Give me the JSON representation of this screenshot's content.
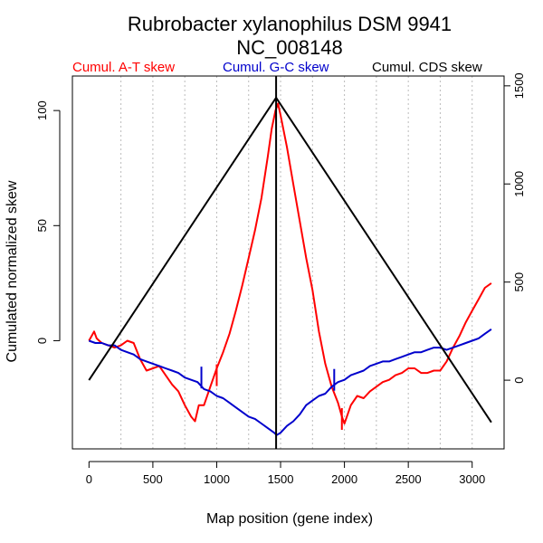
{
  "chart_data": {
    "type": "line",
    "title": "Rubrobacter xylanophilus DSM 9941",
    "subtitle": "NC_008148",
    "xlabel": "Map position (gene index)",
    "ylabel": "Cumulated normalized skew",
    "xlim": [
      -130,
      3250
    ],
    "ylim": [
      -47,
      115
    ],
    "y2lim": [
      -350,
      1550
    ],
    "x_ticks": [
      0,
      500,
      1000,
      1500,
      2000,
      2500,
      3000
    ],
    "x_tick_labels": [
      "0",
      "500",
      "1000",
      "1500",
      "2000",
      "2500",
      "3000"
    ],
    "y_ticks": [
      0,
      50,
      100
    ],
    "y_tick_labels": [
      "0",
      "50",
      "100"
    ],
    "y2_ticks": [
      0,
      500,
      1000,
      1500
    ],
    "y2_tick_labels": [
      "0",
      "500",
      "1000",
      "1500"
    ],
    "grid_x": [
      250,
      500,
      750,
      1000,
      1250,
      1500,
      1750,
      2000,
      2250,
      2500,
      2750,
      3000
    ],
    "legend": [
      {
        "label": "Cumul. A-T skew",
        "color": "#ff0000"
      },
      {
        "label": "Cumul. G-C skew",
        "color": "#0000cc"
      },
      {
        "label": "Cumul. CDS skew",
        "color": "#000000"
      }
    ],
    "series": [
      {
        "name": "Cumul. A-T skew",
        "color": "#ff0000",
        "axis": "left",
        "x": [
          0,
          20,
          40,
          60,
          80,
          100,
          150,
          200,
          250,
          300,
          350,
          400,
          450,
          500,
          550,
          600,
          650,
          700,
          750,
          800,
          830,
          860,
          900,
          950,
          1000,
          1050,
          1100,
          1150,
          1200,
          1250,
          1300,
          1350,
          1400,
          1430,
          1460,
          1480,
          1500,
          1550,
          1600,
          1650,
          1700,
          1750,
          1800,
          1850,
          1900,
          1950,
          1980,
          2000,
          2050,
          2100,
          2150,
          2200,
          2250,
          2300,
          2350,
          2400,
          2450,
          2500,
          2550,
          2600,
          2650,
          2700,
          2750,
          2800,
          2850,
          2900,
          2950,
          3000,
          3050,
          3100,
          3150
        ],
        "y": [
          0,
          2,
          4,
          1,
          0,
          -1,
          -2,
          -3,
          -2,
          0,
          -1,
          -8,
          -13,
          -12,
          -11,
          -15,
          -19,
          -22,
          -28,
          -33,
          -35,
          -28,
          -28,
          -20,
          -12,
          -5,
          3,
          13,
          24,
          36,
          48,
          62,
          80,
          92,
          100,
          103,
          98,
          84,
          68,
          52,
          36,
          22,
          4,
          -10,
          -20,
          -27,
          -33,
          -36,
          -28,
          -24,
          -25,
          -22,
          -20,
          -18,
          -17,
          -15,
          -14,
          -12,
          -12,
          -14,
          -14,
          -13,
          -13,
          -9,
          -3,
          2,
          8,
          13,
          18,
          23,
          25
        ]
      },
      {
        "name": "Cumul. G-C skew",
        "color": "#0000cc",
        "axis": "left",
        "x": [
          0,
          50,
          100,
          150,
          200,
          250,
          300,
          350,
          400,
          450,
          500,
          550,
          600,
          650,
          700,
          750,
          800,
          850,
          900,
          950,
          1000,
          1050,
          1100,
          1150,
          1200,
          1250,
          1300,
          1350,
          1400,
          1450,
          1470,
          1500,
          1550,
          1600,
          1650,
          1700,
          1750,
          1800,
          1850,
          1900,
          1950,
          2000,
          2050,
          2100,
          2150,
          2200,
          2250,
          2300,
          2350,
          2400,
          2450,
          2500,
          2550,
          2600,
          2650,
          2700,
          2750,
          2800,
          2850,
          2900,
          2950,
          3000,
          3050,
          3100,
          3150
        ],
        "y": [
          0,
          -1,
          -1,
          -2,
          -2,
          -4,
          -5,
          -6,
          -8,
          -9,
          -10,
          -11,
          -12,
          -13,
          -14,
          -16,
          -17,
          -18,
          -21,
          -22,
          -24,
          -25,
          -27,
          -29,
          -31,
          -33,
          -34,
          -36,
          -38,
          -40,
          -41,
          -40,
          -37,
          -35,
          -32,
          -28,
          -26,
          -24,
          -23,
          -20,
          -18,
          -17,
          -15,
          -14,
          -13,
          -11,
          -10,
          -9,
          -9,
          -8,
          -7,
          -6,
          -5,
          -5,
          -4,
          -3,
          -3,
          -4,
          -3,
          -2,
          -1,
          0,
          1,
          3,
          5
        ]
      },
      {
        "name": "Cumul. CDS skew",
        "color": "#000000",
        "axis": "right",
        "x": [
          0,
          1465,
          3150
        ],
        "y": [
          0,
          1440,
          -215
        ]
      }
    ],
    "annotations": [
      {
        "type": "vline",
        "x": 1465,
        "ymin": -47,
        "ymax": 115,
        "color": "#000000"
      },
      {
        "type": "marker",
        "x": 880,
        "y": -16,
        "color": "#0000cc"
      },
      {
        "type": "marker",
        "x": 1000,
        "y": -15,
        "color": "#ff0000"
      },
      {
        "type": "marker",
        "x": 1920,
        "y": -17,
        "color": "#0000cc"
      },
      {
        "type": "marker",
        "x": 1980,
        "y": -34,
        "color": "#ff0000"
      }
    ]
  }
}
